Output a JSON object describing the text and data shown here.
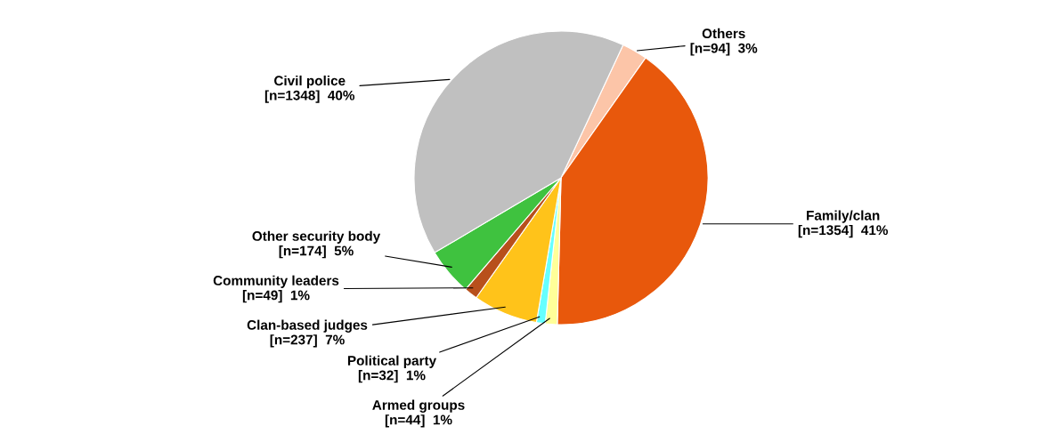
{
  "chart_data": {
    "type": "pie",
    "categories": [
      "Others",
      "Family/clan",
      "Armed groups",
      "Political party",
      "Clan-based judges",
      "Community leaders",
      "Other security body",
      "Civil police"
    ],
    "values": [
      94,
      1354,
      44,
      32,
      237,
      49,
      174,
      1348
    ],
    "colors": [
      "#fcc5a8",
      "#e8580c",
      "#ffff99",
      "#66ffff",
      "#ffc31a",
      "#b8501c",
      "#3fc23f",
      "#c0c0c0"
    ],
    "value_labels": [
      "[n=94]  3%",
      "[n=1354]  41%",
      "[n=44]  1%",
      "[n=32]  1%",
      "[n=237]  7%",
      "[n=49]  1%",
      "[n=174]  5%",
      "[n=1348]  40%"
    ],
    "legend": false
  }
}
